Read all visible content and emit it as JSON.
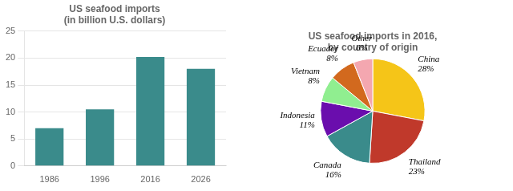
{
  "chart_data": [
    {
      "type": "bar",
      "title": "US seafood imports\n(in billion U.S. dollars)",
      "categories": [
        "1986",
        "1996",
        "2016",
        "2026"
      ],
      "values": [
        7,
        10.5,
        20.2,
        18
      ],
      "color": "#3a8b8b",
      "ylim": [
        0,
        25
      ],
      "yticks": [
        0,
        5,
        10,
        15,
        20,
        25
      ],
      "grid": true
    },
    {
      "type": "pie",
      "title": "US seafood imports in 2016,\nby country of origin",
      "categories": [
        "China",
        "Thailand",
        "Canada",
        "Indonesia",
        "Vietnam",
        "Ecuador",
        "Other"
      ],
      "values": [
        28,
        23,
        16,
        11,
        8,
        8,
        6
      ],
      "value_labels": [
        "28%",
        "23%",
        "16%",
        "11%",
        "8%",
        "8%",
        "6%"
      ],
      "colors": [
        "#f5c518",
        "#c0392b",
        "#3a8b8b",
        "#6a0dad",
        "#90ee90",
        "#d2691e",
        "#f4a7b0"
      ],
      "data_labels": true
    }
  ]
}
